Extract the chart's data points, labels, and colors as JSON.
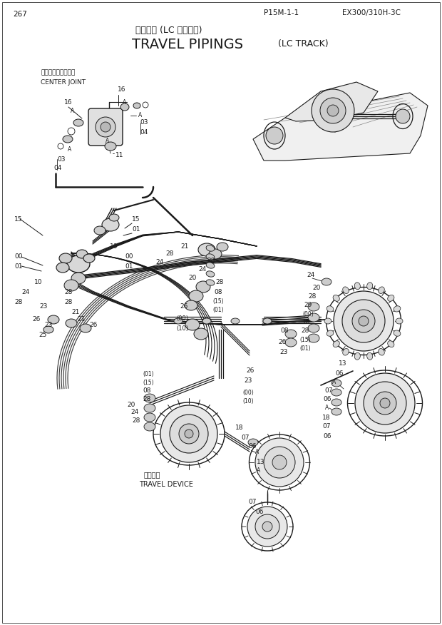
{
  "page_num": "267",
  "doc_ref": "P15M-1-1",
  "model": "EX300/310H-3C",
  "title_jp": "走行配管 (LC トラック)",
  "title_en": "TRAVEL PIPINGS",
  "title_en2": "(LC TRACK)",
  "center_joint_jp": "センタージョイント",
  "center_joint_en": "CENTER JOINT",
  "travel_device_jp": "走行装置",
  "travel_device_en": "TRAVEL DEVICE",
  "bg_color": "#ffffff",
  "lc": "#1a1a1a"
}
